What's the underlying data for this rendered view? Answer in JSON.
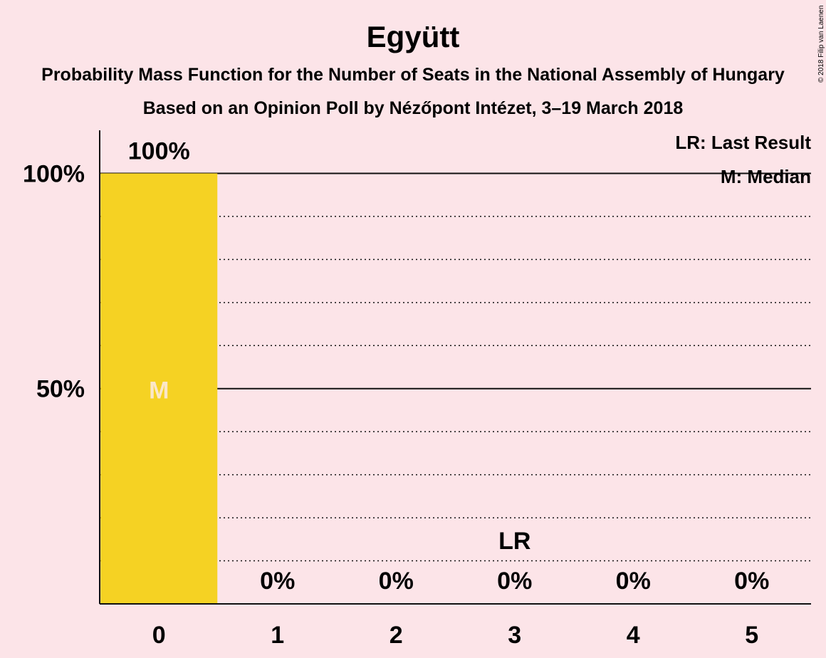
{
  "copyright": "© 2018 Filip van Laenen",
  "colors": {
    "background": "#fce4e8",
    "bar": "#f5d223",
    "median_text": "#fbe7c8",
    "axis": "#111111"
  },
  "chart_data": {
    "type": "bar",
    "title": "Együtt",
    "subtitle_line1": "Probability Mass Function for the Number of Seats in the National Assembly of Hungary",
    "subtitle_line2": "Based on an Opinion Poll by Nézőpont Intézet, 3–19 March 2018",
    "categories": [
      "0",
      "1",
      "2",
      "3",
      "4",
      "5"
    ],
    "values": [
      100,
      0,
      0,
      0,
      0,
      0
    ],
    "data_labels": [
      "100%",
      "0%",
      "0%",
      "0%",
      "0%",
      "0%"
    ],
    "ylim": [
      0,
      110
    ],
    "yticks": [
      {
        "value": 50,
        "label": "50%"
      },
      {
        "value": 100,
        "label": "100%"
      }
    ],
    "minor_gridlines": [
      10,
      20,
      30,
      40,
      60,
      70,
      80,
      90
    ],
    "median_seat": "0",
    "median_marker": "M",
    "last_result_seat": "3",
    "last_result_marker": "LR",
    "legend": [
      "LR: Last Result",
      "M: Median"
    ]
  }
}
